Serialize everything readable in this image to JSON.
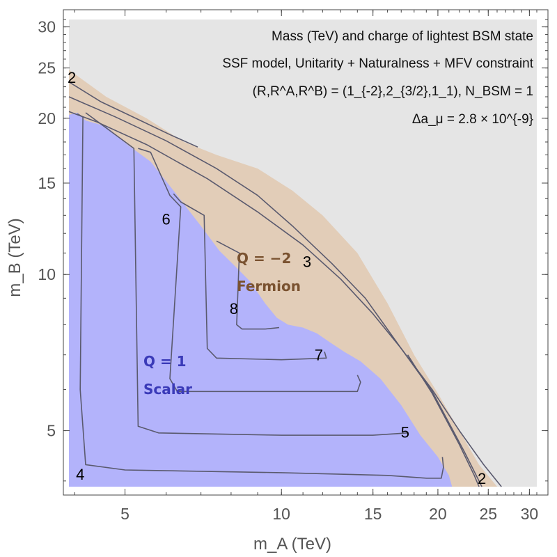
{
  "colors": {
    "background_region": "#e5e5e5",
    "fermion_region": "#e2cdb8",
    "scalar_region": "#b3b3fb",
    "contour": "#5a5a6e",
    "fermion_text": "#7a5230",
    "scalar_text": "#3a3ab8",
    "frame": "#444444"
  },
  "chart_data": {
    "type": "contour",
    "xscale": "log",
    "yscale": "log",
    "xlim": [
      3.9,
      31
    ],
    "ylim": [
      3.9,
      31
    ],
    "xlabel": "m_A (TeV)",
    "ylabel": "m_B (TeV)",
    "xticks": [
      {
        "value": 5,
        "label": "5"
      },
      {
        "value": 10,
        "label": "10"
      },
      {
        "value": 15,
        "label": "15"
      },
      {
        "value": 20,
        "label": "20"
      },
      {
        "value": 25,
        "label": "25"
      },
      {
        "value": 30,
        "label": "30"
      }
    ],
    "yticks": [
      {
        "value": 5,
        "label": "5"
      },
      {
        "value": 10,
        "label": "10"
      },
      {
        "value": 15,
        "label": "15"
      },
      {
        "value": 20,
        "label": "20"
      },
      {
        "value": 25,
        "label": "25"
      },
      {
        "value": 30,
        "label": "30"
      }
    ],
    "info": [
      {
        "text": "Mass (TeV) and charge of lightest BSM state"
      },
      {
        "text": "SSF model, Unitarity + Naturalness + MFV constraint"
      },
      {
        "text": "(R,R^A,R^B) = (1_{-2},2_{3/2},1_1), N_BSM = 1"
      },
      {
        "text": "Δa_μ = 2.8 × 10^{-9}"
      }
    ],
    "regions": [
      {
        "name": "excluded",
        "color_key": "background_region",
        "points": [
          [
            3.9,
            3.9
          ],
          [
            31,
            3.9
          ],
          [
            31,
            31
          ],
          [
            3.9,
            31
          ]
        ]
      },
      {
        "name": "fermion-region",
        "charge_label": "Q = −2",
        "type_label": "Fermion",
        "color_key": "fermion_region",
        "points": [
          [
            3.9,
            24.8
          ],
          [
            4.6,
            22
          ],
          [
            5.5,
            20
          ],
          [
            6.5,
            18
          ],
          [
            7.5,
            17
          ],
          [
            9,
            16
          ],
          [
            10.5,
            14.5
          ],
          [
            12,
            13
          ],
          [
            14,
            11
          ],
          [
            16,
            8.8
          ],
          [
            18,
            7
          ],
          [
            20,
            5.9
          ],
          [
            22,
            5
          ],
          [
            24,
            4.3
          ],
          [
            26,
            3.9
          ],
          [
            3.9,
            3.9
          ]
        ]
      },
      {
        "name": "scalar-region",
        "charge_label": "Q = 1",
        "type_label": "Scalar",
        "color_key": "scalar_region",
        "points": [
          [
            3.9,
            3.9
          ],
          [
            3.9,
            20.3
          ],
          [
            4.05,
            20.5
          ],
          [
            4.2,
            19.8
          ],
          [
            4.6,
            19.3
          ],
          [
            5.05,
            17.8
          ],
          [
            5.6,
            16.5
          ],
          [
            6.2,
            14.5
          ],
          [
            7.0,
            12.4
          ],
          [
            7.6,
            11.1
          ],
          [
            8.2,
            10.3
          ],
          [
            8.7,
            9.7
          ],
          [
            9.3,
            8.8
          ],
          [
            9.8,
            8.25
          ],
          [
            10.3,
            8.0
          ],
          [
            11.0,
            7.9
          ],
          [
            11.7,
            7.7
          ],
          [
            12.4,
            7.4
          ],
          [
            13.2,
            7.1
          ],
          [
            14.2,
            6.8
          ],
          [
            15.5,
            6.3
          ],
          [
            17,
            5.6
          ],
          [
            18.5,
            4.9
          ],
          [
            20,
            4.45
          ],
          [
            21,
            4.1
          ],
          [
            21.3,
            3.9
          ]
        ]
      }
    ],
    "contours": [
      {
        "level": "2",
        "name": "contour-2a",
        "points": [
          [
            3.9,
            23.5
          ],
          [
            4.5,
            21.5
          ],
          [
            5.3,
            19.9
          ],
          [
            6.1,
            18.6
          ],
          [
            6.9,
            17.6
          ]
        ],
        "label_pos": [
          3.95,
          24.0
        ]
      },
      {
        "level": "2",
        "name": "contour-2b",
        "points": [
          [
            26.5,
            3.9
          ],
          [
            24.5,
            4.3
          ],
          [
            22,
            5.0
          ],
          [
            19.5,
            6.0
          ],
          [
            17,
            7.2
          ],
          [
            15,
            8.4
          ],
          [
            13,
            9.8
          ],
          [
            11,
            11.4
          ],
          [
            9,
            13.2
          ],
          [
            7.2,
            15.3
          ],
          [
            5.5,
            17.8
          ],
          [
            4.4,
            19.7
          ],
          [
            3.9,
            20.6
          ]
        ],
        "label_pos": [
          24.3,
          4.05
        ]
      },
      {
        "level": "3",
        "name": "contour-3a",
        "points": [
          [
            3.9,
            22.0
          ],
          [
            4.8,
            20.1
          ],
          [
            6.0,
            18.1
          ],
          [
            7.5,
            16.0
          ],
          [
            9.0,
            14.2
          ],
          [
            10.5,
            12.4
          ],
          [
            12.5,
            10.5
          ],
          [
            14.5,
            9.0
          ],
          [
            17,
            7.2
          ],
          [
            19.5,
            5.95
          ],
          [
            22.5,
            4.55
          ],
          [
            24.3,
            3.9
          ]
        ],
        "label_pos": [
          11.2,
          10.6
        ]
      },
      {
        "level": "3",
        "name": "contour-3b",
        "points": [
          [
            17.5,
            7.0
          ],
          [
            19.5,
            5.9
          ],
          [
            22,
            4.7
          ],
          [
            23.5,
            4.1
          ],
          [
            24,
            3.9
          ]
        ],
        "label_pos": null
      },
      {
        "level": "4",
        "name": "contour-4",
        "points": [
          [
            4.05,
            20.4
          ],
          [
            4.15,
            20.1
          ],
          [
            4.1,
            6.0
          ],
          [
            4.2,
            4.3
          ],
          [
            5.0,
            4.2
          ],
          [
            10,
            4.15
          ],
          [
            16,
            4.1
          ],
          [
            19,
            4.05
          ],
          [
            20.3,
            4.05
          ],
          [
            20.5,
            4.25
          ],
          [
            20.4,
            4.45
          ]
        ],
        "label_pos": [
          4.1,
          4.12
        ]
      },
      {
        "level": "5",
        "name": "contour-5",
        "points": [
          [
            4.2,
            20.5
          ],
          [
            5.2,
            17.5
          ],
          [
            5.3,
            5.1
          ],
          [
            5.8,
            4.95
          ],
          [
            10,
            4.9
          ],
          [
            15,
            4.9
          ],
          [
            17.5,
            4.95
          ]
        ],
        "label_pos": [
          17.3,
          4.97
        ]
      },
      {
        "level": "6",
        "name": "contour-6",
        "points": [
          [
            5.3,
            17.5
          ],
          [
            5.6,
            17.2
          ],
          [
            6.1,
            14.2
          ],
          [
            6.4,
            13.5
          ],
          [
            6.1,
            6.3
          ],
          [
            6.3,
            5.95
          ],
          [
            10,
            5.95
          ],
          [
            14,
            5.95
          ],
          [
            14.2,
            6.2
          ],
          [
            14.0,
            6.4
          ]
        ],
        "label_pos": [
          6.0,
          12.8
        ]
      },
      {
        "level": "7",
        "name": "contour-7",
        "points": [
          [
            6.2,
            14.3
          ],
          [
            6.4,
            13.8
          ],
          [
            7.1,
            13.0
          ],
          [
            7.2,
            7.2
          ],
          [
            7.5,
            6.9
          ],
          [
            10,
            6.85
          ],
          [
            12.2,
            6.9
          ],
          [
            12.1,
            7.1
          ]
        ],
        "label_pos": [
          11.8,
          7.0
        ]
      },
      {
        "level": "8",
        "name": "contour-8",
        "points": [
          [
            7.5,
            11.6
          ],
          [
            8.3,
            11.0
          ],
          [
            8.2,
            8.0
          ],
          [
            8.4,
            7.85
          ],
          [
            9.3,
            7.85
          ],
          [
            9.9,
            7.9
          ]
        ],
        "label_pos": [
          8.1,
          8.6
        ]
      }
    ]
  }
}
